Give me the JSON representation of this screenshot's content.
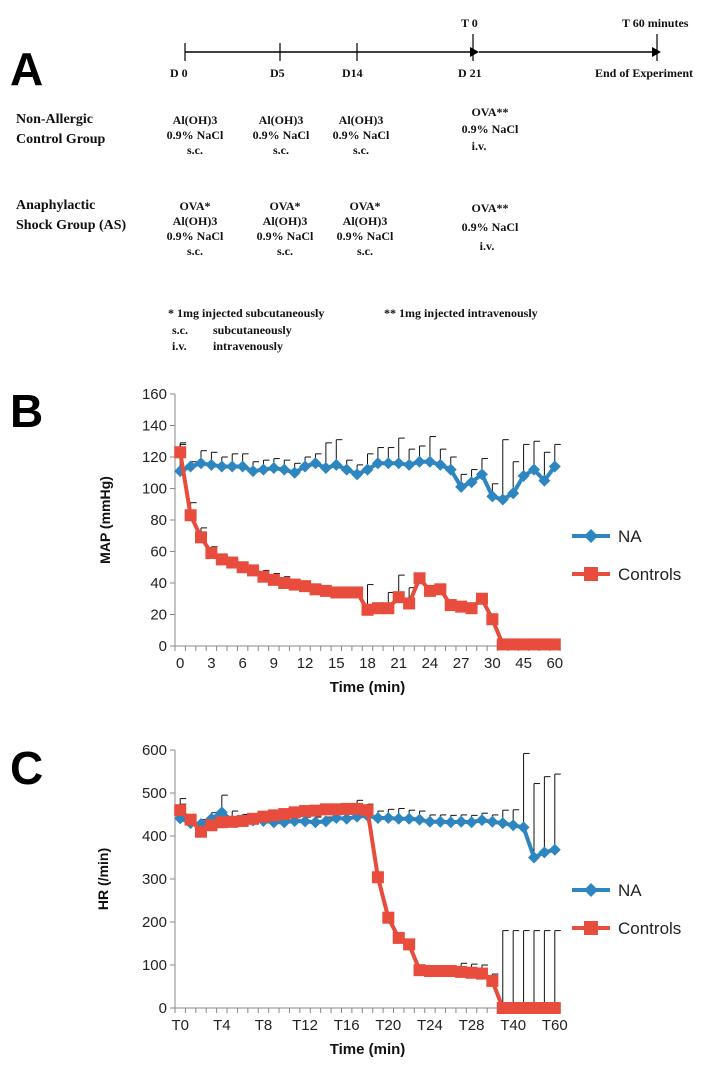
{
  "panels": {
    "a": "A",
    "b": "B",
    "c": "C"
  },
  "timeline": {
    "t0": "T 0",
    "t60": "T 60 minutes",
    "days": [
      "D 0",
      "D5",
      "D14",
      "D 21"
    ],
    "end": "End of Experiment",
    "groups": [
      {
        "name_lines": [
          "Non-Allergic",
          "Control Group"
        ],
        "cells": [
          [
            "Al(OH)3",
            "0.9% NaCl",
            "s.c."
          ],
          [
            "Al(OH)3",
            "0.9% NaCl",
            "s.c."
          ],
          [
            "Al(OH)3",
            "0.9% NaCl",
            "s.c."
          ],
          [
            "OVA**",
            "0.9% NaCl",
            "i.v."
          ]
        ]
      },
      {
        "name_lines": [
          "Anaphylactic",
          "Shock Group (AS)"
        ],
        "cells": [
          [
            "OVA*",
            "Al(OH)3",
            "0.9% NaCl",
            "s.c."
          ],
          [
            "OVA*",
            "Al(OH)3",
            "0.9% NaCl",
            "s.c."
          ],
          [
            "OVA*",
            "Al(OH)3",
            "0.9% NaCl",
            "s.c."
          ],
          [
            "OVA**",
            "0.9% NaCl",
            "i.v."
          ]
        ]
      }
    ],
    "footnote1": "* 1mg injected subcutaneously",
    "footnote2": "** 1mg injected intravenously",
    "abbrev": [
      {
        "abbr": "s.c.",
        "full": "subcutaneously"
      },
      {
        "abbr": "i.v.",
        "full": "intravenously"
      }
    ]
  },
  "chart_data": [
    {
      "type": "line",
      "ylabel": "MAP (mmHg)",
      "xlabel": "Time (min)",
      "ylim": [
        0,
        160
      ],
      "yticks": [
        0,
        20,
        40,
        60,
        80,
        100,
        120,
        140,
        160
      ],
      "xtick_labels": [
        "0",
        "3",
        "6",
        "9",
        "12",
        "15",
        "18",
        "21",
        "24",
        "27",
        "30",
        "45",
        "60"
      ],
      "x": [
        0,
        1,
        2,
        3,
        4,
        5,
        6,
        7,
        8,
        9,
        10,
        11,
        12,
        13,
        14,
        15,
        16,
        17,
        18,
        19,
        20,
        21,
        22,
        23,
        24,
        25,
        26,
        27,
        28,
        29,
        30,
        35,
        40,
        45,
        50,
        55,
        60
      ],
      "legend_position": "right",
      "series": [
        {
          "name": "NA",
          "color": "#2E86C1",
          "marker": "diamond",
          "values": [
            111,
            114,
            116,
            115,
            114,
            114,
            114,
            111,
            112,
            113,
            112,
            110,
            114,
            116,
            113,
            115,
            112,
            109,
            112,
            116,
            116,
            116,
            115,
            117,
            117,
            115,
            112,
            101,
            104,
            109,
            95,
            93,
            97,
            108,
            112,
            105,
            114
          ],
          "errors": [
            17,
            3,
            8,
            8,
            6,
            8,
            8,
            6,
            6,
            6,
            6,
            6,
            6,
            6,
            16,
            16,
            6,
            6,
            10,
            10,
            10,
            16,
            10,
            10,
            16,
            10,
            8,
            8,
            8,
            10,
            8,
            38,
            20,
            20,
            18,
            18,
            14
          ]
        },
        {
          "name": "Controls",
          "color": "#E74C3C",
          "marker": "square",
          "values": [
            123,
            83,
            69,
            59,
            55,
            53,
            50,
            48,
            44,
            42,
            40,
            39,
            38,
            36,
            35,
            34,
            34,
            34,
            23,
            24,
            24,
            31,
            27,
            43,
            35,
            36,
            26,
            25,
            24,
            30,
            17,
            1,
            1,
            1,
            1,
            1,
            1
          ],
          "errors": [
            6,
            8,
            6,
            4,
            2,
            2,
            2,
            2,
            4,
            4,
            4,
            2,
            2,
            2,
            2,
            2,
            2,
            2,
            16,
            2,
            10,
            14,
            10,
            2,
            2,
            2,
            2,
            2,
            2,
            2,
            2,
            0,
            0,
            0,
            0,
            0,
            0
          ]
        }
      ]
    },
    {
      "type": "line",
      "ylabel": "HR (/min)",
      "xlabel": "Time (min)",
      "ylim": [
        0,
        600
      ],
      "yticks": [
        0,
        100,
        200,
        300,
        400,
        500,
        600
      ],
      "xtick_labels": [
        "T0",
        "T4",
        "T8",
        "T12",
        "T16",
        "T20",
        "T24",
        "T28",
        "T40",
        "T60"
      ],
      "x": [
        0,
        1,
        2,
        3,
        4,
        5,
        6,
        7,
        8,
        9,
        10,
        11,
        12,
        13,
        14,
        15,
        16,
        17,
        18,
        19,
        20,
        21,
        22,
        23,
        24,
        25,
        26,
        27,
        28,
        29,
        30,
        35,
        40,
        45,
        50,
        55,
        60
      ],
      "legend_position": "right",
      "series": [
        {
          "name": "NA",
          "color": "#2E86C1",
          "marker": "diamond",
          "values": [
            441,
            430,
            428,
            440,
            455,
            436,
            438,
            436,
            435,
            432,
            432,
            435,
            434,
            432,
            434,
            442,
            440,
            445,
            447,
            442,
            442,
            440,
            440,
            438,
            433,
            433,
            432,
            433,
            432,
            437,
            433,
            430,
            425,
            420,
            350,
            362,
            368
          ],
          "errors": [
            46,
            12,
            10,
            14,
            40,
            22,
            12,
            10,
            10,
            10,
            10,
            12,
            10,
            12,
            10,
            20,
            20,
            20,
            20,
            16,
            20,
            24,
            20,
            20,
            16,
            16,
            16,
            16,
            16,
            16,
            16,
            30,
            36,
            172,
            172,
            176,
            176
          ]
        },
        {
          "name": "Controls",
          "color": "#E74C3C",
          "marker": "square",
          "values": [
            460,
            438,
            410,
            425,
            432,
            433,
            435,
            440,
            445,
            448,
            451,
            455,
            458,
            459,
            462,
            462,
            463,
            463,
            460,
            304,
            210,
            163,
            148,
            88,
            86,
            86,
            86,
            84,
            82,
            80,
            63,
            0,
            0,
            0,
            0,
            0,
            0
          ],
          "errors": [
            14,
            8,
            6,
            6,
            8,
            6,
            6,
            6,
            8,
            8,
            10,
            10,
            10,
            10,
            10,
            10,
            10,
            20,
            14,
            10,
            10,
            10,
            12,
            10,
            6,
            6,
            6,
            20,
            20,
            20,
            16,
            180,
            180,
            180,
            180,
            180,
            180
          ]
        }
      ]
    }
  ]
}
